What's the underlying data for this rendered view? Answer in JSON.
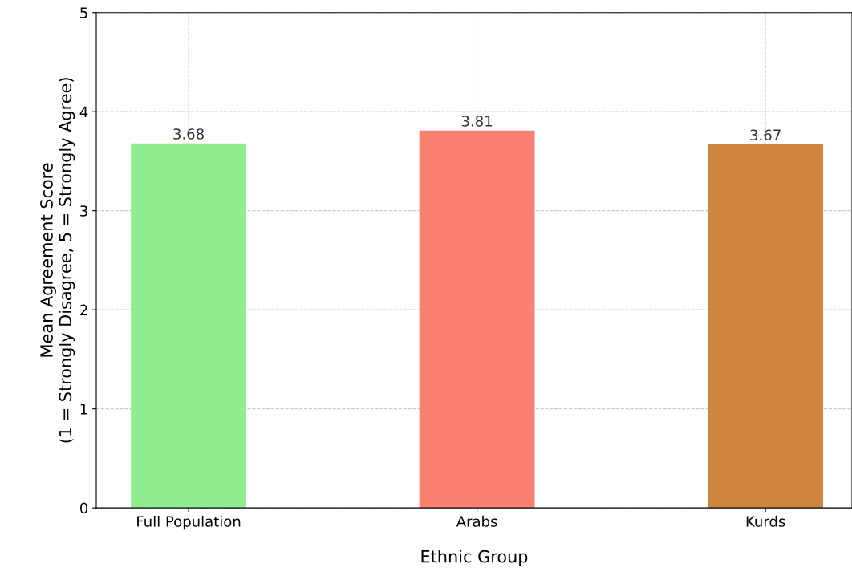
{
  "chart_data": {
    "type": "bar",
    "xlabel": "Ethnic Group",
    "ylabel": "Mean Agreement Score\n(1 = Strongly Disagree, 5 = Strongly Agree)",
    "categories": [
      "Full Population",
      "Arabs",
      "Kurds"
    ],
    "values": [
      3.68,
      3.81,
      3.67
    ],
    "colors": [
      "#90ee90",
      "#fa8072",
      "#cd853f"
    ],
    "ylim": [
      0,
      5
    ],
    "yticks": [
      0,
      1,
      2,
      3,
      4,
      5
    ],
    "grid": true,
    "data_labels": true
  }
}
